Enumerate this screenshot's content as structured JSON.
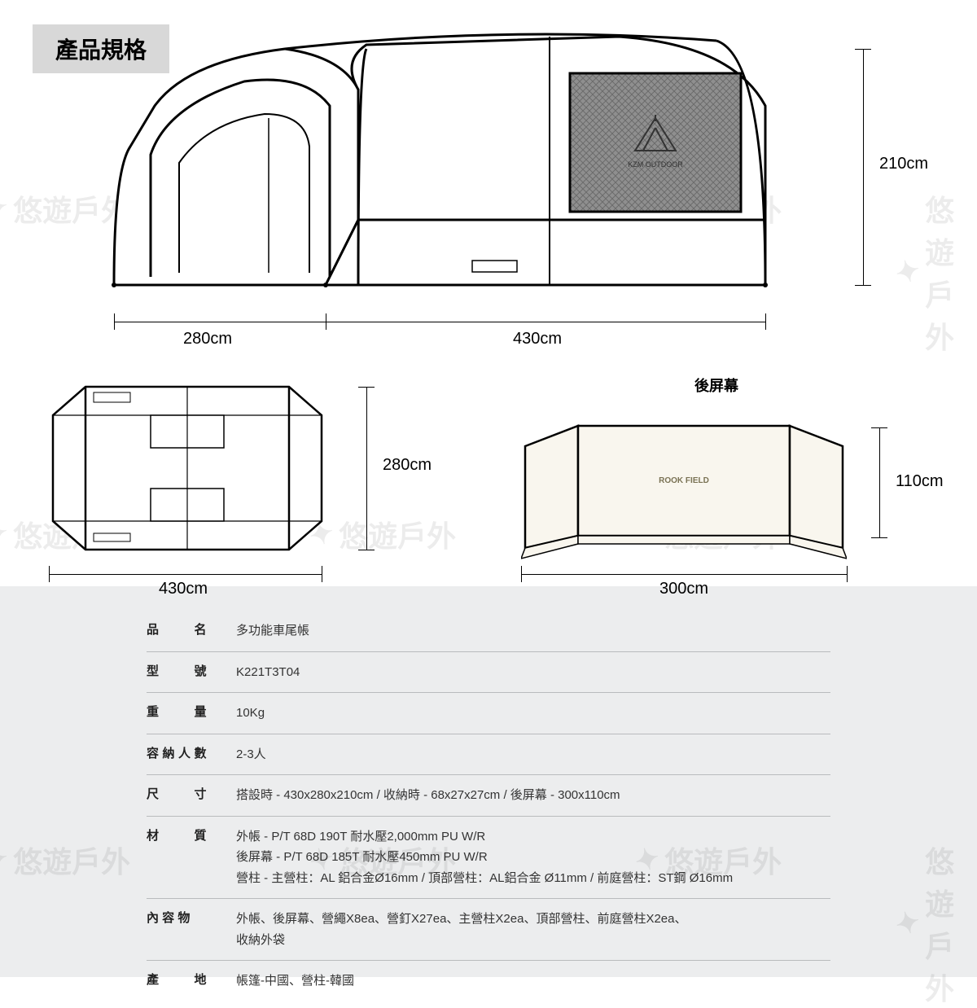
{
  "header": {
    "title": "產品規格"
  },
  "watermark": {
    "text": "悠遊戶外"
  },
  "diagrams": {
    "main": {
      "width_label": "430cm",
      "depth_label": "280cm",
      "height_label": "210cm",
      "stroke": "#000000",
      "fill": "#ffffff",
      "mesh_fill": "#8f8f8f",
      "logo_text": "KZM OUTDOOR"
    },
    "top_view": {
      "width_label": "430cm",
      "depth_label": "280cm",
      "stroke": "#000000",
      "fill": "#ffffff"
    },
    "rear_screen": {
      "title": "後屏幕",
      "width_label": "300cm",
      "height_label": "110cm",
      "brand_text": "ROOK FIELD",
      "stroke": "#000000",
      "fill": "#f9f6ee"
    }
  },
  "spec": {
    "rows": [
      {
        "label": "品　　名",
        "value": "多功能車尾帳"
      },
      {
        "label": "型　　號",
        "value": "K221T3T04"
      },
      {
        "label": "重　　量",
        "value": "10Kg"
      },
      {
        "label": "容納人數",
        "value": "2-3人"
      },
      {
        "label": "尺　　寸",
        "value": "搭設時 - 430x280x210cm / 收納時 - 68x27x27cm / 後屏幕 - 300x110cm"
      },
      {
        "label": "材　　質",
        "value": "外帳 - P/T 68D 190T 耐水壓2,000mm PU W/R\n後屏幕 - P/T 68D 185T 耐水壓450mm PU W/R\n營柱 - 主營柱：AL 鋁合金Ø16mm / 頂部營柱：AL鋁合金 Ø11mm / 前庭營柱：ST鋼 Ø16mm"
      },
      {
        "label": "內 容 物",
        "value": "外帳、後屏幕、營繩X8ea、營釘X27ea、主營柱X2ea、頂部營柱、前庭營柱X2ea、\n收納外袋"
      },
      {
        "label": "產　　地",
        "value": "帳篷-中國、營柱-韓國"
      }
    ]
  },
  "style": {
    "badge_bg": "#d8d8d8",
    "table_bg": "#ecedee",
    "table_border": "#b9bbbd",
    "label_fontsize": 15,
    "title_fontsize": 28
  }
}
